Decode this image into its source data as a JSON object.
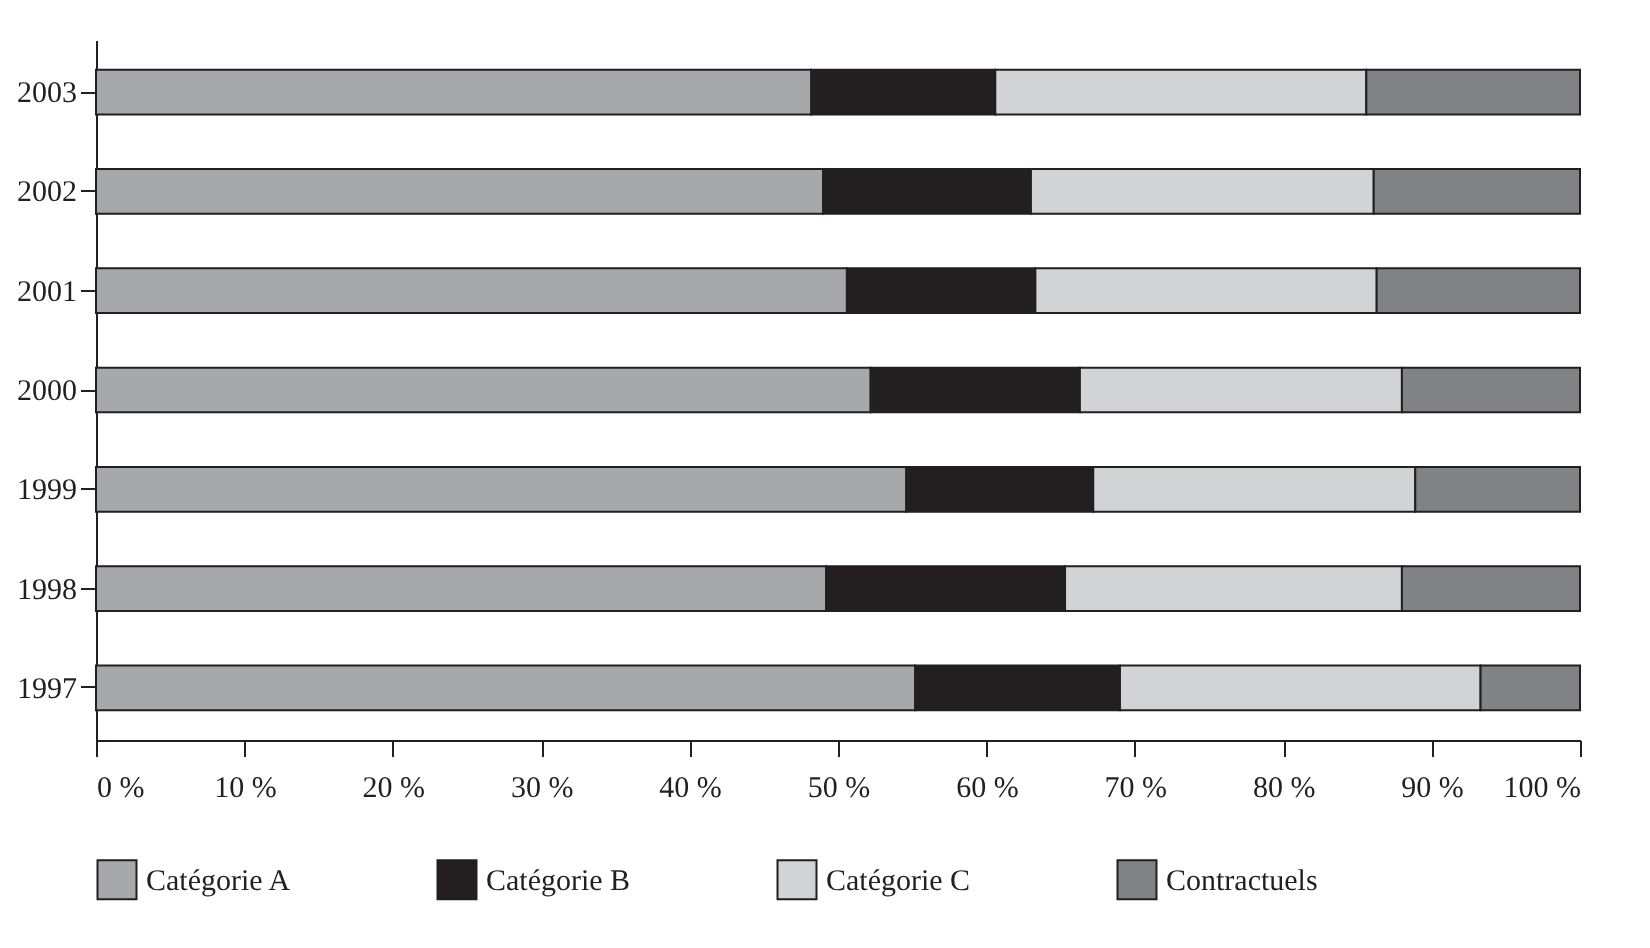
{
  "chart_data": {
    "type": "bar",
    "orientation": "horizontal",
    "stacked": true,
    "categories": [
      "2003",
      "2002",
      "2001",
      "2000",
      "1999",
      "1998",
      "1997"
    ],
    "series": [
      {
        "name": "Catégorie A",
        "color": "#a7a8ab",
        "values": [
          48.2,
          49.0,
          50.6,
          52.2,
          54.6,
          49.2,
          55.2
        ]
      },
      {
        "name": "Catégorie B",
        "color": "#231f20",
        "values": [
          12.4,
          14.0,
          12.7,
          14.1,
          12.6,
          16.1,
          13.8
        ]
      },
      {
        "name": "Catégorie C",
        "color": "#d1d3d4",
        "values": [
          25.0,
          23.1,
          23.0,
          21.7,
          21.7,
          22.7,
          24.3
        ]
      },
      {
        "name": "Contractuels",
        "color": "#808285",
        "values": [
          14.4,
          13.9,
          13.7,
          12.0,
          11.1,
          12.0,
          6.7
        ]
      }
    ],
    "xlim": [
      0,
      100
    ],
    "xticks": [
      {
        "value": 0,
        "label": "0 %"
      },
      {
        "value": 10,
        "label": "10 %"
      },
      {
        "value": 20,
        "label": "20 %"
      },
      {
        "value": 30,
        "label": "30 %"
      },
      {
        "value": 40,
        "label": "40 %"
      },
      {
        "value": 50,
        "label": "50 %"
      },
      {
        "value": 60,
        "label": "60 %"
      },
      {
        "value": 70,
        "label": "70 %"
      },
      {
        "value": 80,
        "label": "80 %"
      },
      {
        "value": 90,
        "label": "90 %"
      },
      {
        "value": 100,
        "label": "100 %"
      }
    ],
    "grid": false,
    "legend": "bottom"
  }
}
